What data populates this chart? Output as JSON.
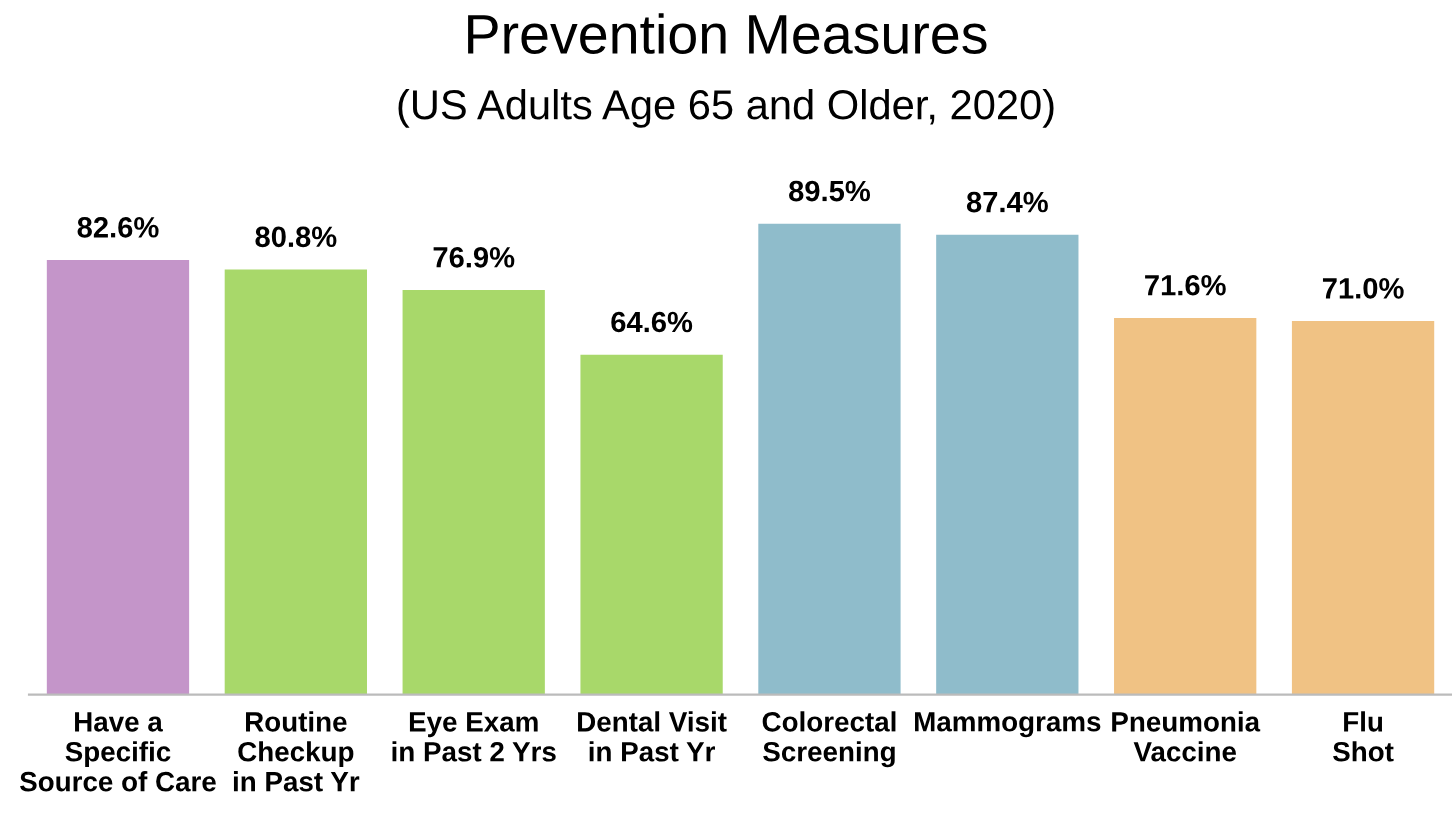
{
  "chart_data": {
    "type": "bar",
    "title": "Prevention Measures",
    "subtitle": "(US Adults Age 65 and Older, 2020)",
    "categories": [
      "Have a\nSpecific\nSource of Care",
      "Routine\nCheckup\nin Past Yr",
      "Eye Exam\nin Past 2 Yrs",
      "Dental Visit\nin Past Yr",
      "Colorectal\nScreening",
      "Mammograms",
      "Pneumonia\nVaccine",
      "Flu\nShot"
    ],
    "values": [
      82.6,
      80.8,
      76.9,
      64.6,
      89.5,
      87.4,
      71.6,
      71.0
    ],
    "colors": [
      "#c495c9",
      "#a8d86a",
      "#a8d86a",
      "#a8d86a",
      "#8fbccb",
      "#8fbccb",
      "#f0c284",
      "#f0c284"
    ],
    "value_labels": [
      "82.6%",
      "80.8%",
      "76.9%",
      "64.6%",
      "89.5%",
      "87.4%",
      "71.6%",
      "71.0%"
    ],
    "grid": false,
    "legend": false
  }
}
